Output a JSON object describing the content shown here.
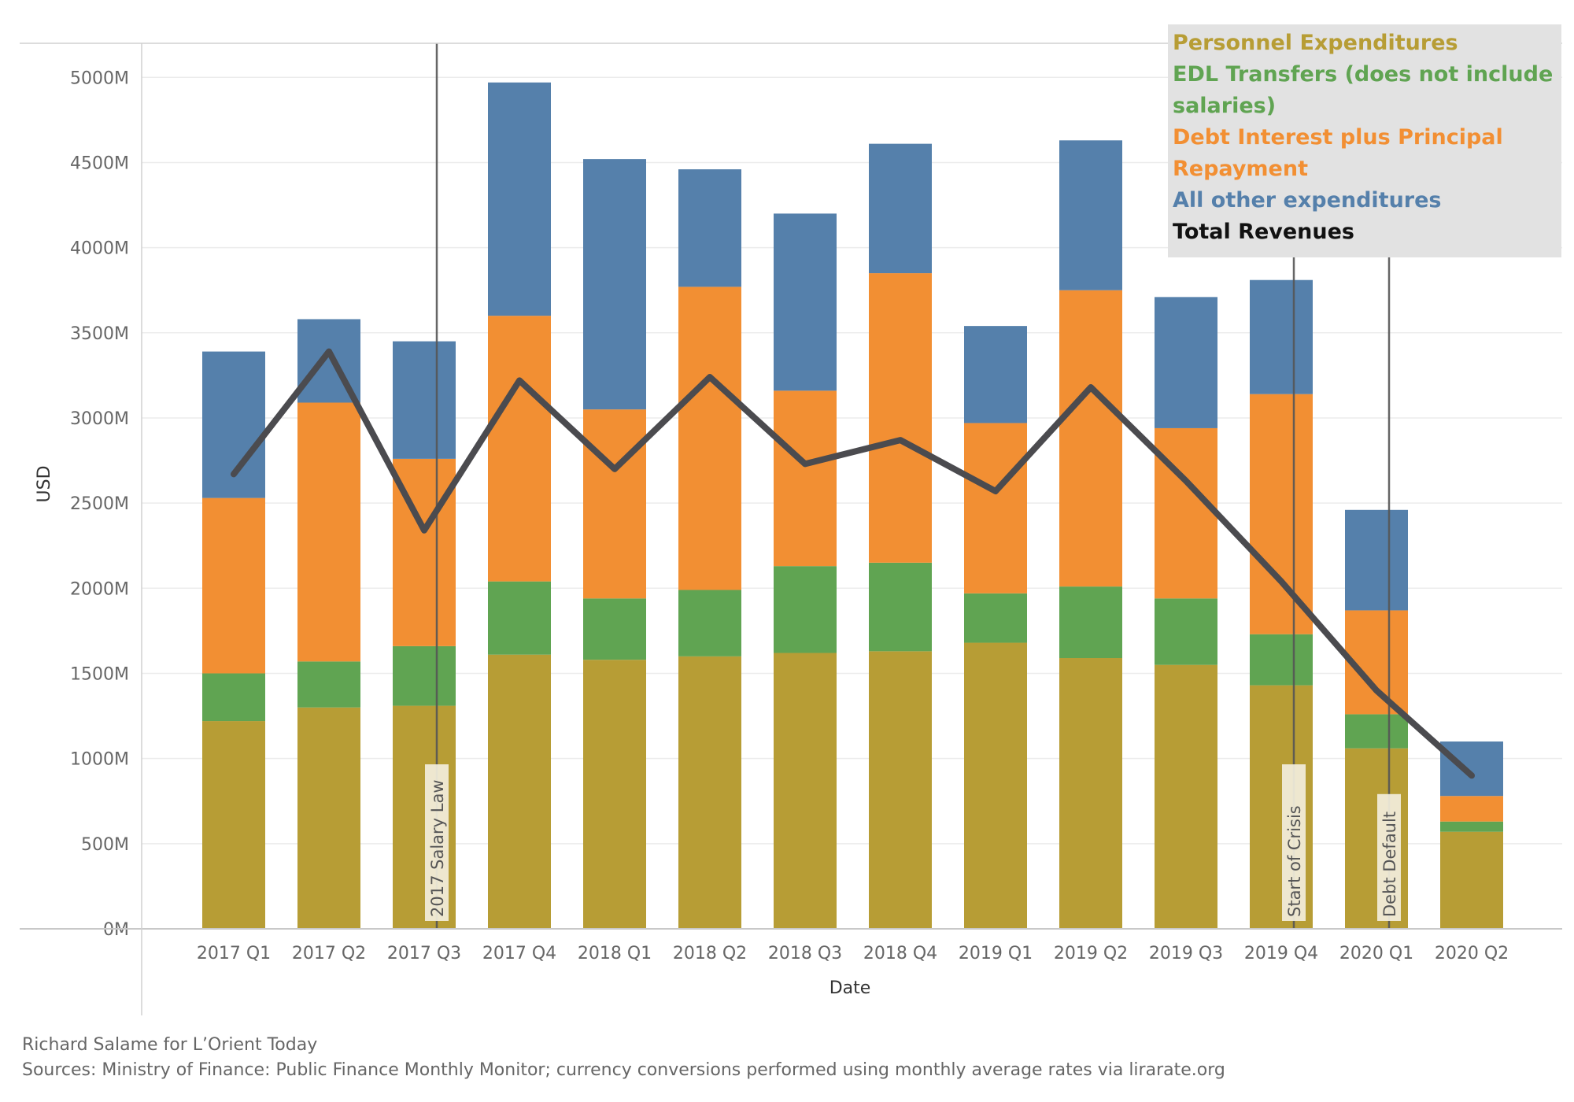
{
  "chart_data": {
    "type": "bar",
    "stacked": true,
    "categories": [
      "2017 Q1",
      "2017 Q2",
      "2017 Q3",
      "2017 Q4",
      "2018 Q1",
      "2018 Q2",
      "2018 Q3",
      "2018 Q4",
      "2019 Q1",
      "2019 Q2",
      "2019 Q3",
      "2019 Q4",
      "2020 Q1",
      "2020 Q2"
    ],
    "xlabel": "Date",
    "ylabel": "USD",
    "ylim": [
      0,
      5200
    ],
    "yticks": [
      0,
      500,
      1000,
      1500,
      2000,
      2500,
      3000,
      3500,
      4000,
      4500,
      5000
    ],
    "ytick_labels": [
      "0M",
      "500M",
      "1000M",
      "1500M",
      "2000M",
      "2500M",
      "3000M",
      "3500M",
      "4000M",
      "4500M",
      "5000M"
    ],
    "grid": true,
    "legend_position": "top-right",
    "series": [
      {
        "name": "Personnel Expenditures",
        "color": "#b79d35",
        "values": [
          1220,
          1300,
          1310,
          1610,
          1580,
          1600,
          1620,
          1630,
          1680,
          1590,
          1550,
          1430,
          1060,
          570
        ]
      },
      {
        "name": "EDL Transfers (does not include salaries)",
        "color": "#60a452",
        "values": [
          280,
          270,
          350,
          430,
          360,
          390,
          510,
          520,
          290,
          420,
          390,
          300,
          200,
          60
        ]
      },
      {
        "name": "Debt Interest plus Principal Repayment",
        "color": "#f28f33",
        "values": [
          1030,
          1520,
          1100,
          1560,
          1110,
          1780,
          1030,
          1700,
          1000,
          1740,
          1000,
          1410,
          610,
          150
        ]
      },
      {
        "name": "All other expenditures",
        "color": "#5580ab",
        "values": [
          860,
          490,
          690,
          1370,
          1470,
          690,
          1040,
          760,
          570,
          880,
          770,
          670,
          590,
          320
        ]
      }
    ],
    "line_series": {
      "name": "Total Revenues",
      "color": "#4b4b4f",
      "values": [
        2670,
        3390,
        2340,
        3220,
        2700,
        3240,
        2730,
        2870,
        2570,
        3180,
        2630,
        2040,
        1400,
        900
      ]
    },
    "annotations": [
      {
        "label": "2017 Salary Law",
        "category": "2017 Q3"
      },
      {
        "label": "Start of Crisis",
        "category": "2019 Q4"
      },
      {
        "label": "Debt Default",
        "category": "2020 Q1"
      }
    ]
  },
  "legend": [
    {
      "label": "Personnel Expenditures",
      "color": "#b79d35"
    },
    {
      "label": "EDL Transfers (does not include salaries)",
      "color": "#60a452"
    },
    {
      "label": "Debt Interest plus Principal Repayment",
      "color": "#f28f33"
    },
    {
      "label": "All other expenditures",
      "color": "#5580ab"
    },
    {
      "label": "Total Revenues",
      "color": "#111111"
    }
  ],
  "footer": {
    "credit": "Richard Salame for L’Orient Today",
    "sources": "Sources: Ministry of Finance: Public Finance Monthly Monitor; currency conversions performed using monthly average rates via lirarate.org"
  }
}
